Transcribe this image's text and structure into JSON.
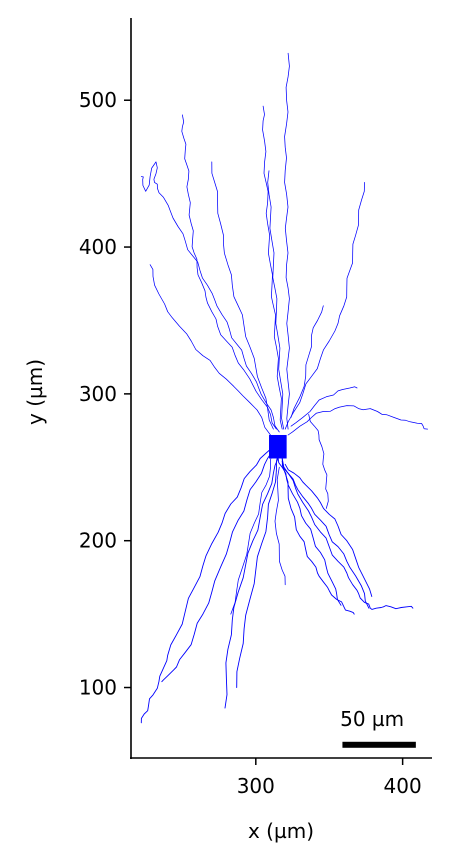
{
  "chart_data": {
    "type": "line",
    "title": "",
    "xlabel": "x (µm)",
    "ylabel": "y (µm)",
    "xlim": [
      215,
      420
    ],
    "ylim": [
      52,
      556
    ],
    "xticks": [
      300,
      400
    ],
    "yticks": [
      100,
      200,
      300,
      400,
      500
    ],
    "grid": false,
    "color": "#0000ff",
    "soma": {
      "x": [
        309,
        321
      ],
      "y": [
        256,
        272
      ]
    },
    "scale_bar": {
      "label": "50 µm",
      "length": 50,
      "x_start": 359,
      "y": 61
    },
    "series": [
      {
        "x": [
          313,
          303,
          296,
          290,
          283,
          277,
          270,
          264,
          258,
          252,
          246,
          240,
          237,
          234,
          230,
          227,
          224,
          222
        ],
        "y": [
          265,
          256,
          247,
          236,
          225,
          212,
          198,
          183,
          168,
          152,
          136,
          122,
          113,
          104,
          95,
          88,
          82,
          76
        ]
      },
      {
        "x": [
          312,
          306,
          300,
          294,
          288,
          282,
          276,
          270,
          264,
          258,
          252,
          246,
          240,
          236
        ],
        "y": [
          262,
          252,
          240,
          228,
          214,
          198,
          182,
          165,
          150,
          136,
          124,
          114,
          108,
          104
        ]
      },
      {
        "x": [
          316,
          312,
          308,
          303,
          298,
          293,
          288,
          284,
          281,
          280,
          279
        ],
        "y": [
          258,
          246,
          232,
          216,
          200,
          183,
          165,
          146,
          126,
          106,
          86
        ]
      },
      {
        "x": [
          316,
          314,
          311,
          308,
          304,
          300,
          296,
          292,
          289,
          287
        ],
        "y": [
          262,
          248,
          232,
          216,
          198,
          180,
          160,
          140,
          120,
          100
        ]
      },
      {
        "x": [
          318,
          320,
          322,
          324,
          327,
          330,
          334,
          338,
          342,
          346,
          350,
          355,
          360,
          364,
          367
        ],
        "y": [
          258,
          246,
          234,
          222,
          212,
          203,
          194,
          186,
          178,
          172,
          166,
          160,
          155,
          152,
          150
        ]
      },
      {
        "x": [
          318,
          322,
          327,
          332,
          338,
          344,
          350,
          356,
          362,
          366,
          370,
          374,
          378,
          382,
          387,
          392,
          397,
          403,
          407
        ],
        "y": [
          256,
          246,
          236,
          226,
          216,
          206,
          196,
          186,
          178,
          170,
          164,
          158,
          154,
          154,
          155,
          155,
          154,
          155,
          154
        ]
      },
      {
        "x": [
          318,
          322,
          327,
          332,
          338,
          344,
          350,
          356,
          362,
          368,
          374,
          377
        ],
        "y": [
          254,
          246,
          238,
          230,
          222,
          214,
          204,
          196,
          186,
          176,
          164,
          154
        ]
      },
      {
        "x": [
          320,
          326,
          332,
          338,
          344,
          350,
          356,
          362,
          368,
          374,
          379
        ],
        "y": [
          252,
          246,
          240,
          234,
          226,
          218,
          210,
          200,
          188,
          174,
          162
        ]
      },
      {
        "x": [
          315,
          318,
          321,
          325,
          330,
          334,
          339,
          344,
          348,
          352,
          355,
          358
        ],
        "y": [
          258,
          250,
          242,
          232,
          222,
          212,
          202,
          192,
          182,
          172,
          164,
          156
        ]
      },
      {
        "x": [
          316,
          315,
          314,
          314,
          316,
          318,
          320
        ],
        "y": [
          250,
          235,
          220,
          205,
          192,
          180,
          170
        ]
      },
      {
        "x": [
          312,
          310,
          307,
          303,
          299,
          295,
          291,
          287,
          283
        ],
        "y": [
          262,
          250,
          238,
          226,
          212,
          198,
          182,
          166,
          150
        ]
      },
      {
        "x": [
          310,
          304,
          296,
          288,
          280,
          272,
          264,
          256,
          248,
          240,
          234,
          230,
          228
        ],
        "y": [
          272,
          284,
          294,
          302,
          310,
          318,
          326,
          336,
          346,
          356,
          368,
          380,
          388
        ]
      },
      {
        "x": [
          314,
          310,
          304,
          298,
          292,
          286,
          280,
          274,
          270,
          266,
          263,
          260,
          258,
          257,
          256,
          255,
          254,
          254,
          253,
          252,
          251,
          250,
          250
        ],
        "y": [
          276,
          286,
          296,
          306,
          316,
          326,
          336,
          346,
          356,
          366,
          376,
          386,
          396,
          406,
          416,
          426,
          436,
          446,
          456,
          466,
          474,
          482,
          490
        ]
      },
      {
        "x": [
          316,
          312,
          307,
          302,
          297,
          292,
          287,
          282,
          277,
          272,
          267,
          262,
          257,
          252,
          247,
          242,
          237,
          233,
          231,
          232,
          232,
          228,
          225,
          223,
          222
        ],
        "y": [
          274,
          284,
          294,
          304,
          314,
          324,
          334,
          344,
          354,
          364,
          374,
          384,
          394,
          404,
          414,
          424,
          434,
          440,
          444,
          450,
          458,
          448,
          438,
          446,
          448
        ]
      },
      {
        "x": [
          318,
          317,
          316,
          315,
          314,
          313,
          312,
          311,
          310,
          309,
          308,
          308,
          307,
          306,
          306,
          305,
          305
        ],
        "y": [
          276,
          290,
          304,
          318,
          332,
          346,
          360,
          374,
          388,
          402,
          416,
          430,
          444,
          458,
          472,
          486,
          496
        ]
      },
      {
        "x": [
          319,
          318,
          317,
          316,
          315,
          314,
          313,
          312,
          311,
          310,
          309,
          309
        ],
        "y": [
          276,
          292,
          308,
          324,
          340,
          356,
          372,
          388,
          404,
          420,
          436,
          452
        ]
      },
      {
        "x": [
          322,
          322,
          322,
          322,
          322,
          322,
          322,
          321,
          321,
          321,
          321,
          320,
          320,
          321,
          321,
          322,
          322
        ],
        "y": [
          276,
          292,
          308,
          324,
          340,
          356,
          372,
          388,
          404,
          420,
          436,
          452,
          468,
          484,
          500,
          516,
          532
        ]
      },
      {
        "x": [
          312,
          308,
          304,
          300,
          296,
          292,
          288,
          284,
          281,
          278,
          276,
          274,
          272,
          270
        ],
        "y": [
          276,
          290,
          304,
          318,
          332,
          346,
          360,
          374,
          388,
          402,
          416,
          430,
          444,
          458
        ]
      },
      {
        "x": [
          320,
          326,
          332,
          338,
          344,
          350,
          356,
          360,
          362,
          364,
          366,
          368,
          370,
          372,
          374
        ],
        "y": [
          276,
          288,
          300,
          312,
          324,
          336,
          348,
          360,
          372,
          384,
          396,
          408,
          420,
          432,
          444
        ]
      },
      {
        "x": [
          324,
          330,
          334,
          336,
          338,
          342,
          346
        ],
        "y": [
          284,
          298,
          312,
          326,
          340,
          350,
          360
        ]
      },
      {
        "x": [
          322,
          330,
          338,
          346,
          354,
          362,
          370,
          378,
          386,
          394,
          402,
          410,
          414,
          417
        ],
        "y": [
          272,
          278,
          284,
          288,
          290,
          292,
          290,
          290,
          286,
          284,
          282,
          280,
          278,
          276
        ]
      },
      {
        "x": [
          336,
          340,
          343,
          345,
          346,
          347,
          348,
          349,
          348
        ],
        "y": [
          286,
          278,
          272,
          264,
          256,
          248,
          240,
          232,
          222
        ]
      },
      {
        "x": [
          324,
          332,
          340,
          348,
          356,
          364,
          369
        ],
        "y": [
          278,
          284,
          292,
          298,
          302,
          304,
          304
        ]
      }
    ]
  }
}
